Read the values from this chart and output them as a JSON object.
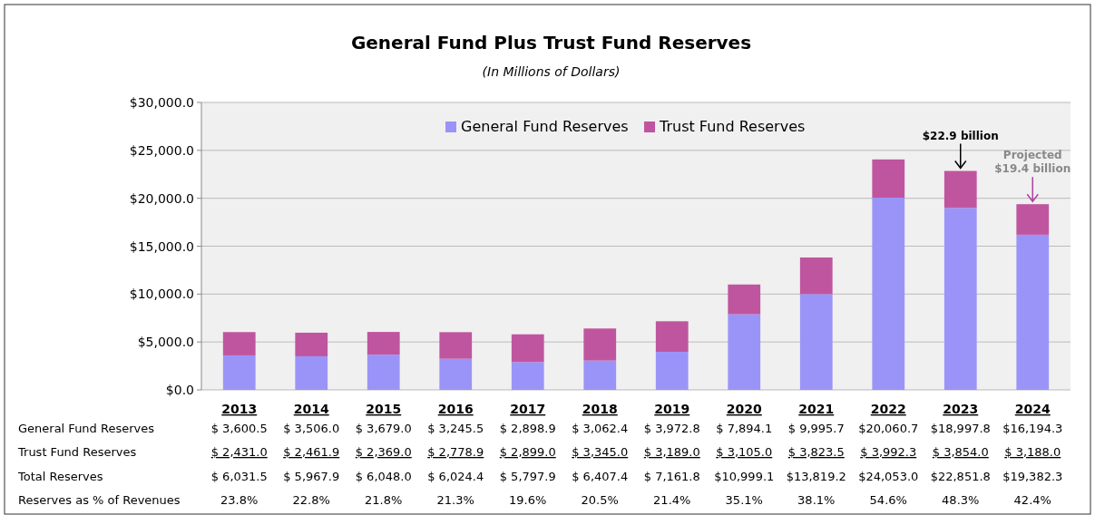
{
  "chart_data": [
    {
      "type": "bar",
      "title": "General Fund Plus Trust Fund Reserves",
      "subtitle": "(In Millions of Dollars)",
      "categories": [
        "2013",
        "2014",
        "2015",
        "2016",
        "2017",
        "2018",
        "2019",
        "2020",
        "2021",
        "2022",
        "2023",
        "2024"
      ],
      "stacked": true,
      "series": [
        {
          "name": "General Fund Reserves",
          "color": "#9b94f8",
          "values": [
            3600.5,
            3506.0,
            3679.0,
            3245.5,
            2898.9,
            3062.4,
            3972.8,
            7894.1,
            9995.7,
            20060.7,
            18997.8,
            16194.3
          ],
          "value_labels": [
            "$ 3,600.5",
            "$ 3,506.0",
            "$ 3,679.0",
            "$ 3,245.5",
            "$ 2,898.9",
            "$ 3,062.4",
            "$ 3,972.8",
            "$ 7,894.1",
            "$ 9,995.7",
            "$20,060.7",
            "$18,997.8",
            "$16,194.3"
          ]
        },
        {
          "name": "Trust Fund Reserves",
          "color": "#c0559f",
          "values": [
            2431.0,
            2461.9,
            2369.0,
            2778.9,
            2899.0,
            3345.0,
            3189.0,
            3105.0,
            3823.5,
            3992.3,
            3854.0,
            3188.0
          ],
          "value_labels": [
            "$ 2,431.0",
            "$ 2,461.9",
            "$ 2,369.0",
            "$ 2,778.9",
            "$ 2,899.0",
            "$ 3,345.0",
            "$ 3,189.0",
            "$ 3,105.0",
            "$ 3,823.5",
            "$ 3,992.3",
            "$ 3,854.0",
            "$ 3,188.0"
          ]
        }
      ],
      "ylim": [
        0,
        30000
      ],
      "yticks": [
        {
          "value": 0,
          "label": "$0.0"
        },
        {
          "value": 5000,
          "label": "$5,000.0"
        },
        {
          "value": 10000,
          "label": "$10,000.0"
        },
        {
          "value": 15000,
          "label": "$15,000.0"
        },
        {
          "value": 20000,
          "label": "$20,000.0"
        },
        {
          "value": 25000,
          "label": "$25,000.0"
        },
        {
          "value": 30000,
          "label": "$30,000.0"
        }
      ],
      "grid": "y",
      "legend": "top",
      "annotations": [
        {
          "text": "$22.9 billion",
          "x": "2023",
          "y": 22851.8
        },
        {
          "text": "Projected $19.4 billion",
          "x": "2024",
          "y": 19382.3
        }
      ]
    },
    {
      "type": "other",
      "title": "Total Reserves",
      "values": [
        6031.5,
        5967.9,
        6048.0,
        6024.4,
        5797.9,
        6407.4,
        7161.8,
        10999.1,
        13819.2,
        24053.0,
        22851.8,
        19382.3
      ],
      "value_labels": [
        "$ 6,031.5",
        "$ 5,967.9",
        "$ 6,048.0",
        "$ 6,024.4",
        "$ 5,797.9",
        "$ 6,407.4",
        "$ 7,161.8",
        "$10,999.1",
        "$13,819.2",
        "$24,053.0",
        "$22,851.8",
        "$19,382.3"
      ]
    },
    {
      "type": "other",
      "title": "Reserves as % of Revenues",
      "values": [
        23.8,
        22.8,
        21.8,
        21.3,
        19.6,
        20.5,
        21.4,
        35.1,
        38.1,
        54.6,
        48.3,
        42.4
      ],
      "value_labels": [
        "23.8%",
        "22.8%",
        "21.8%",
        "21.3%",
        "19.6%",
        "20.5%",
        "21.4%",
        "35.1%",
        "38.1%",
        "54.6%",
        "48.3%",
        "42.4%"
      ]
    }
  ]
}
